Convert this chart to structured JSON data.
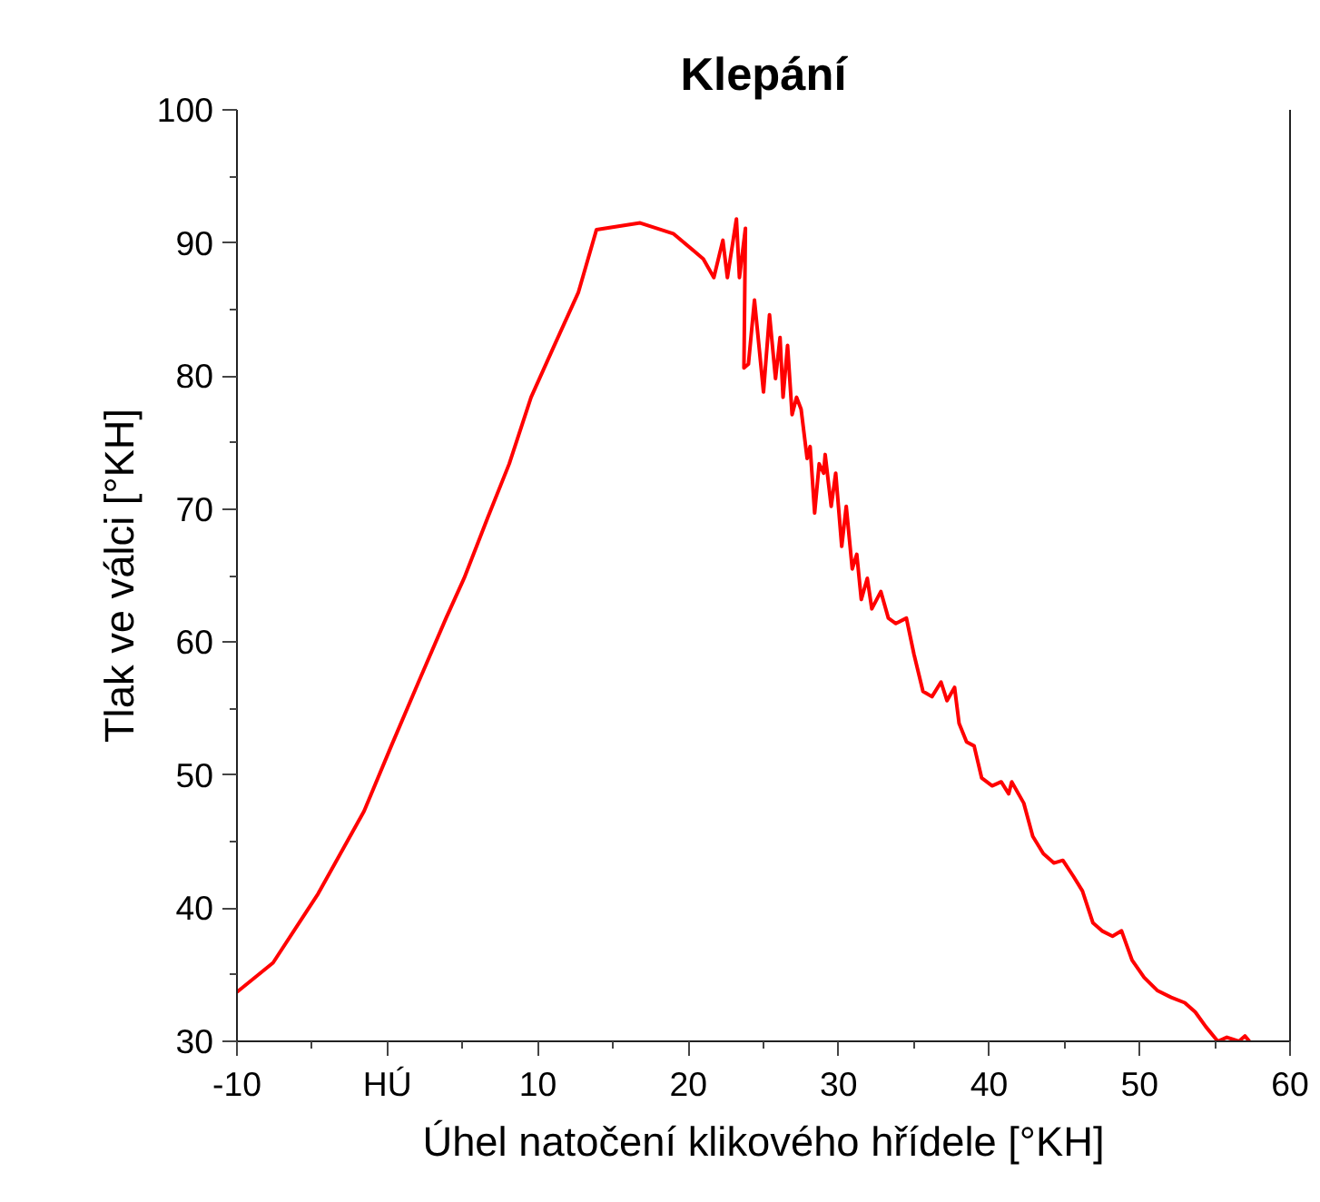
{
  "chart_data": {
    "type": "line",
    "title": "Klepání",
    "xlabel": "Úhel natočení klikového hřídele [°KH]",
    "ylabel": "Tlak ve válci [°KH]",
    "xlim": [
      -10,
      60
    ],
    "xticks": [
      -10,
      {
        "value": 0,
        "label": "HÚ"
      },
      10,
      20,
      30,
      40,
      50,
      60
    ],
    "ylim": [
      30,
      100
    ],
    "yticks": [
      30,
      40,
      50,
      60,
      70,
      80,
      90,
      100
    ],
    "grid": false,
    "marker": "none",
    "line_style": "solid",
    "x": [
      -10,
      -7.6,
      -4.6,
      -1.55,
      0.26,
      2.07,
      3.9,
      5.1,
      6.65,
      8.1,
      9.55,
      11.1,
      12.7,
      13.9,
      16.8,
      19.0,
      21.0,
      21.7,
      22.3,
      22.6,
      23.2,
      23.4,
      23.8,
      23.7,
      24.0,
      24.4,
      25.0,
      25.4,
      25.8,
      26.1,
      26.3,
      26.6,
      26.9,
      27.2,
      27.5,
      27.9,
      28.1,
      28.4,
      28.7,
      29.0,
      29.1,
      29.5,
      29.8,
      30.2,
      30.5,
      30.9,
      31.2,
      31.5,
      31.9,
      32.2,
      32.8,
      33.3,
      33.8,
      34.5,
      35.0,
      35.6,
      36.2,
      36.8,
      37.2,
      37.7,
      38.0,
      38.5,
      39.0,
      39.5,
      40.2,
      40.8,
      41.3,
      41.5,
      42.3,
      42.9,
      43.6,
      44.3,
      44.9,
      45.6,
      46.2,
      46.9,
      47.5,
      48.2,
      48.8,
      49.5,
      50.3,
      51.2,
      52.1,
      53.0,
      53.7,
      54.4,
      55.2,
      55.8,
      56.6,
      57.0,
      57.3
    ],
    "series": [
      {
        "color": "#ff0000",
        "values": [
          33.7,
          35.9,
          41.1,
          47.3,
          52.2,
          57.0,
          61.8,
          64.8,
          69.3,
          73.4,
          78.4,
          82.3,
          86.3,
          91.0,
          91.5,
          90.7,
          88.8,
          87.4,
          90.2,
          87.4,
          91.8,
          87.4,
          91.1,
          80.6,
          80.9,
          85.7,
          78.8,
          84.6,
          79.8,
          82.9,
          78.4,
          82.3,
          77.1,
          78.4,
          77.5,
          73.8,
          74.7,
          69.7,
          73.4,
          72.7,
          74.1,
          70.2,
          72.7,
          67.2,
          70.2,
          65.5,
          66.6,
          63.2,
          64.8,
          62.5,
          63.8,
          61.8,
          61.4,
          61.8,
          59.1,
          56.3,
          55.9,
          57.0,
          55.6,
          56.6,
          53.9,
          52.5,
          52.2,
          49.8,
          49.2,
          49.5,
          48.6,
          49.5,
          47.9,
          45.4,
          44.1,
          43.4,
          43.6,
          42.4,
          41.3,
          38.9,
          38.3,
          37.9,
          38.3,
          36.1,
          34.8,
          33.8,
          33.3,
          32.9,
          32.2,
          31.1,
          30.0,
          30.3,
          30.0,
          30.4,
          30.0
        ]
      }
    ]
  }
}
